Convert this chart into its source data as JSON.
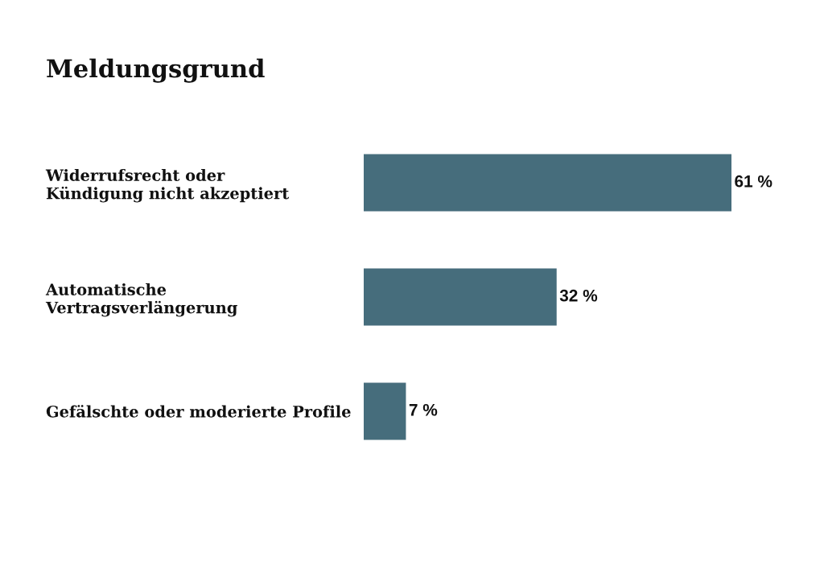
{
  "chart_data": {
    "type": "bar",
    "orientation": "horizontal",
    "title": "Meldungsgrund",
    "categories": [
      "Widerrufsrecht oder\nKündigung nicht akzeptiert",
      "Automatische\nVertragsverlängerung",
      "Gefälschte oder moderierte Profile"
    ],
    "values": [
      61,
      32,
      7
    ],
    "color": "#466d7c",
    "value_labels": [
      "61 %",
      "32 %",
      "7 %"
    ],
    "tick_labels": "y",
    "grid": false
  }
}
